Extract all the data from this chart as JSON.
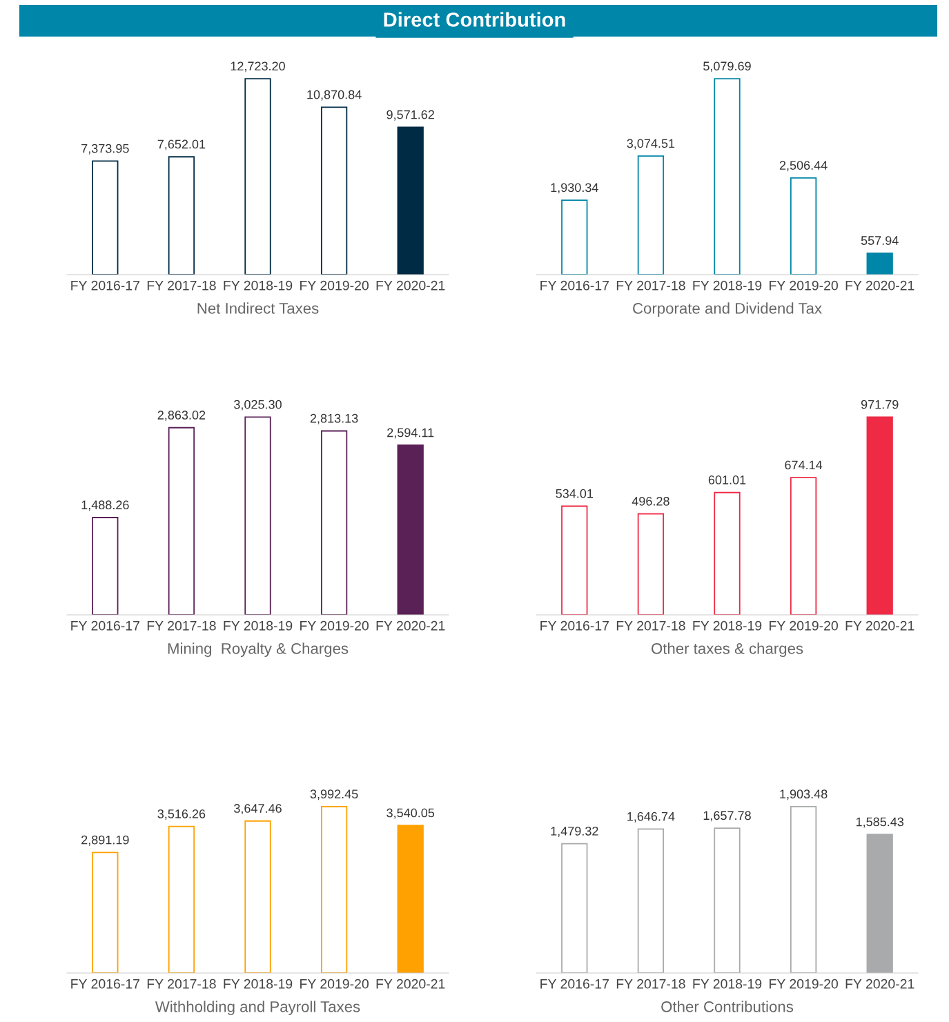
{
  "chart_data": [
    {
      "type": "bar",
      "title": "Direct Contribution",
      "xlabel": "Net Indirect Taxes",
      "categories": [
        "FY 2016-17",
        "FY 2017-18",
        "FY 2018-19",
        "FY 2019-20",
        "FY 2020-21"
      ],
      "values": [
        7373.95,
        7652.01,
        12723.2,
        10870.84,
        9571.62
      ],
      "value_labels": [
        "7,373.95",
        "7,652.01",
        "12,723.20",
        "10,870.84",
        "9,571.62"
      ],
      "color": "#002b45",
      "colors": [
        "#ffffff",
        "#ffffff",
        "#ffffff",
        "#ffffff",
        "#002b45"
      ],
      "tick_labels": "x",
      "grid": false,
      "legend": false
    },
    {
      "type": "bar",
      "xlabel": "Corporate and Dividend Tax",
      "categories": [
        "FY 2016-17",
        "FY 2017-18",
        "FY 2018-19",
        "FY 2019-20",
        "FY 2020-21"
      ],
      "values": [
        1930.34,
        3074.51,
        5079.69,
        2506.44,
        557.94
      ],
      "value_labels": [
        "1,930.34",
        "3,074.51",
        "5,079.69",
        "2,506.44",
        "557.94"
      ],
      "color": "#0086a8",
      "colors": [
        "#ffffff",
        "#ffffff",
        "#ffffff",
        "#ffffff",
        "#0086a8"
      ],
      "tick_labels": "x",
      "grid": false,
      "legend": false
    },
    {
      "type": "bar",
      "xlabel": "Mining  Royalty & Charges",
      "categories": [
        "FY 2016-17",
        "FY 2017-18",
        "FY 2018-19",
        "FY 2019-20",
        "FY 2020-21"
      ],
      "values": [
        1488.26,
        2863.02,
        3025.3,
        2813.13,
        2594.11
      ],
      "value_labels": [
        "1,488.26",
        "2,863.02",
        "3,025.30",
        "2,813.13",
        "2,594.11"
      ],
      "color": "#5a2157",
      "colors": [
        "#ffffff",
        "#ffffff",
        "#ffffff",
        "#ffffff",
        "#5a2157"
      ],
      "tick_labels": "x",
      "grid": false,
      "legend": false
    },
    {
      "type": "bar",
      "xlabel": "Other taxes & charges",
      "categories": [
        "FY 2016-17",
        "FY 2017-18",
        "FY 2018-19",
        "FY 2019-20",
        "FY 2020-21"
      ],
      "values": [
        534.01,
        496.28,
        601.01,
        674.14,
        971.79
      ],
      "value_labels": [
        "534.01",
        "496.28",
        "601.01",
        "674.14",
        "971.79"
      ],
      "color": "#ee2a45",
      "colors": [
        "#ffffff",
        "#ffffff",
        "#ffffff",
        "#ffffff",
        "#ee2a45"
      ],
      "tick_labels": "x",
      "grid": false,
      "legend": false
    },
    {
      "type": "bar",
      "xlabel": "Withholding and Payroll Taxes",
      "categories": [
        "FY 2016-17",
        "FY 2017-18",
        "FY 2018-19",
        "FY 2019-20",
        "FY 2020-21"
      ],
      "values": [
        2891.19,
        3516.26,
        3647.46,
        3992.45,
        3540.05
      ],
      "value_labels": [
        "2,891.19",
        "3,516.26",
        "3,647.46",
        "3,992.45",
        "3,540.05"
      ],
      "color": "#ffa100",
      "colors": [
        "#ffffff",
        "#ffffff",
        "#ffffff",
        "#ffffff",
        "#ffa100"
      ],
      "tick_labels": "x",
      "grid": false,
      "legend": false
    },
    {
      "type": "bar",
      "xlabel": "Other Contributions",
      "categories": [
        "FY 2016-17",
        "FY 2017-18",
        "FY 2018-19",
        "FY 2019-20",
        "FY 2020-21"
      ],
      "values": [
        1479.32,
        1646.74,
        1657.78,
        1903.48,
        1585.43
      ],
      "value_labels": [
        "1,479.32",
        "1,646.74",
        "1,657.78",
        "1,903.48",
        "1,585.43"
      ],
      "color": "#a9aaac",
      "colors": [
        "#ffffff",
        "#ffffff",
        "#ffffff",
        "#ffffff",
        "#a9aaac"
      ],
      "tick_labels": "x",
      "grid": false,
      "legend": false
    }
  ]
}
